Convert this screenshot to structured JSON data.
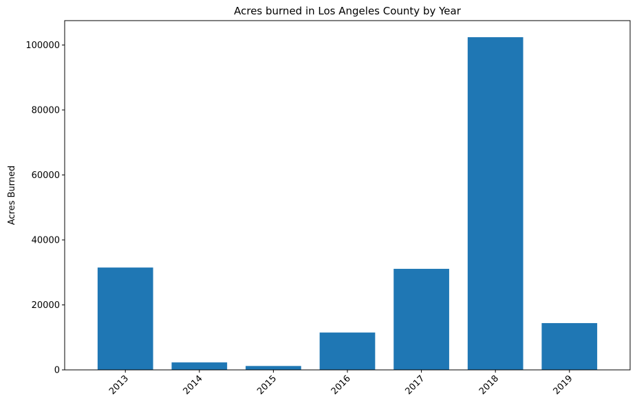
{
  "chart_data": {
    "type": "bar",
    "title": "Acres burned in Los Angeles County by Year",
    "xlabel": "",
    "ylabel": "Acres Burned",
    "categories": [
      "2013",
      "2014",
      "2015",
      "2016",
      "2017",
      "2018",
      "2019"
    ],
    "values": [
      31500,
      2300,
      1200,
      11500,
      31100,
      102400,
      14400
    ],
    "ylim": [
      0,
      107500
    ],
    "yticks": [
      0,
      20000,
      40000,
      60000,
      80000,
      100000
    ],
    "ytick_labels": [
      "0",
      "20000",
      "40000",
      "60000",
      "80000",
      "100000"
    ],
    "bar_color": "#1f77b4",
    "grid": false,
    "legend": "none"
  }
}
